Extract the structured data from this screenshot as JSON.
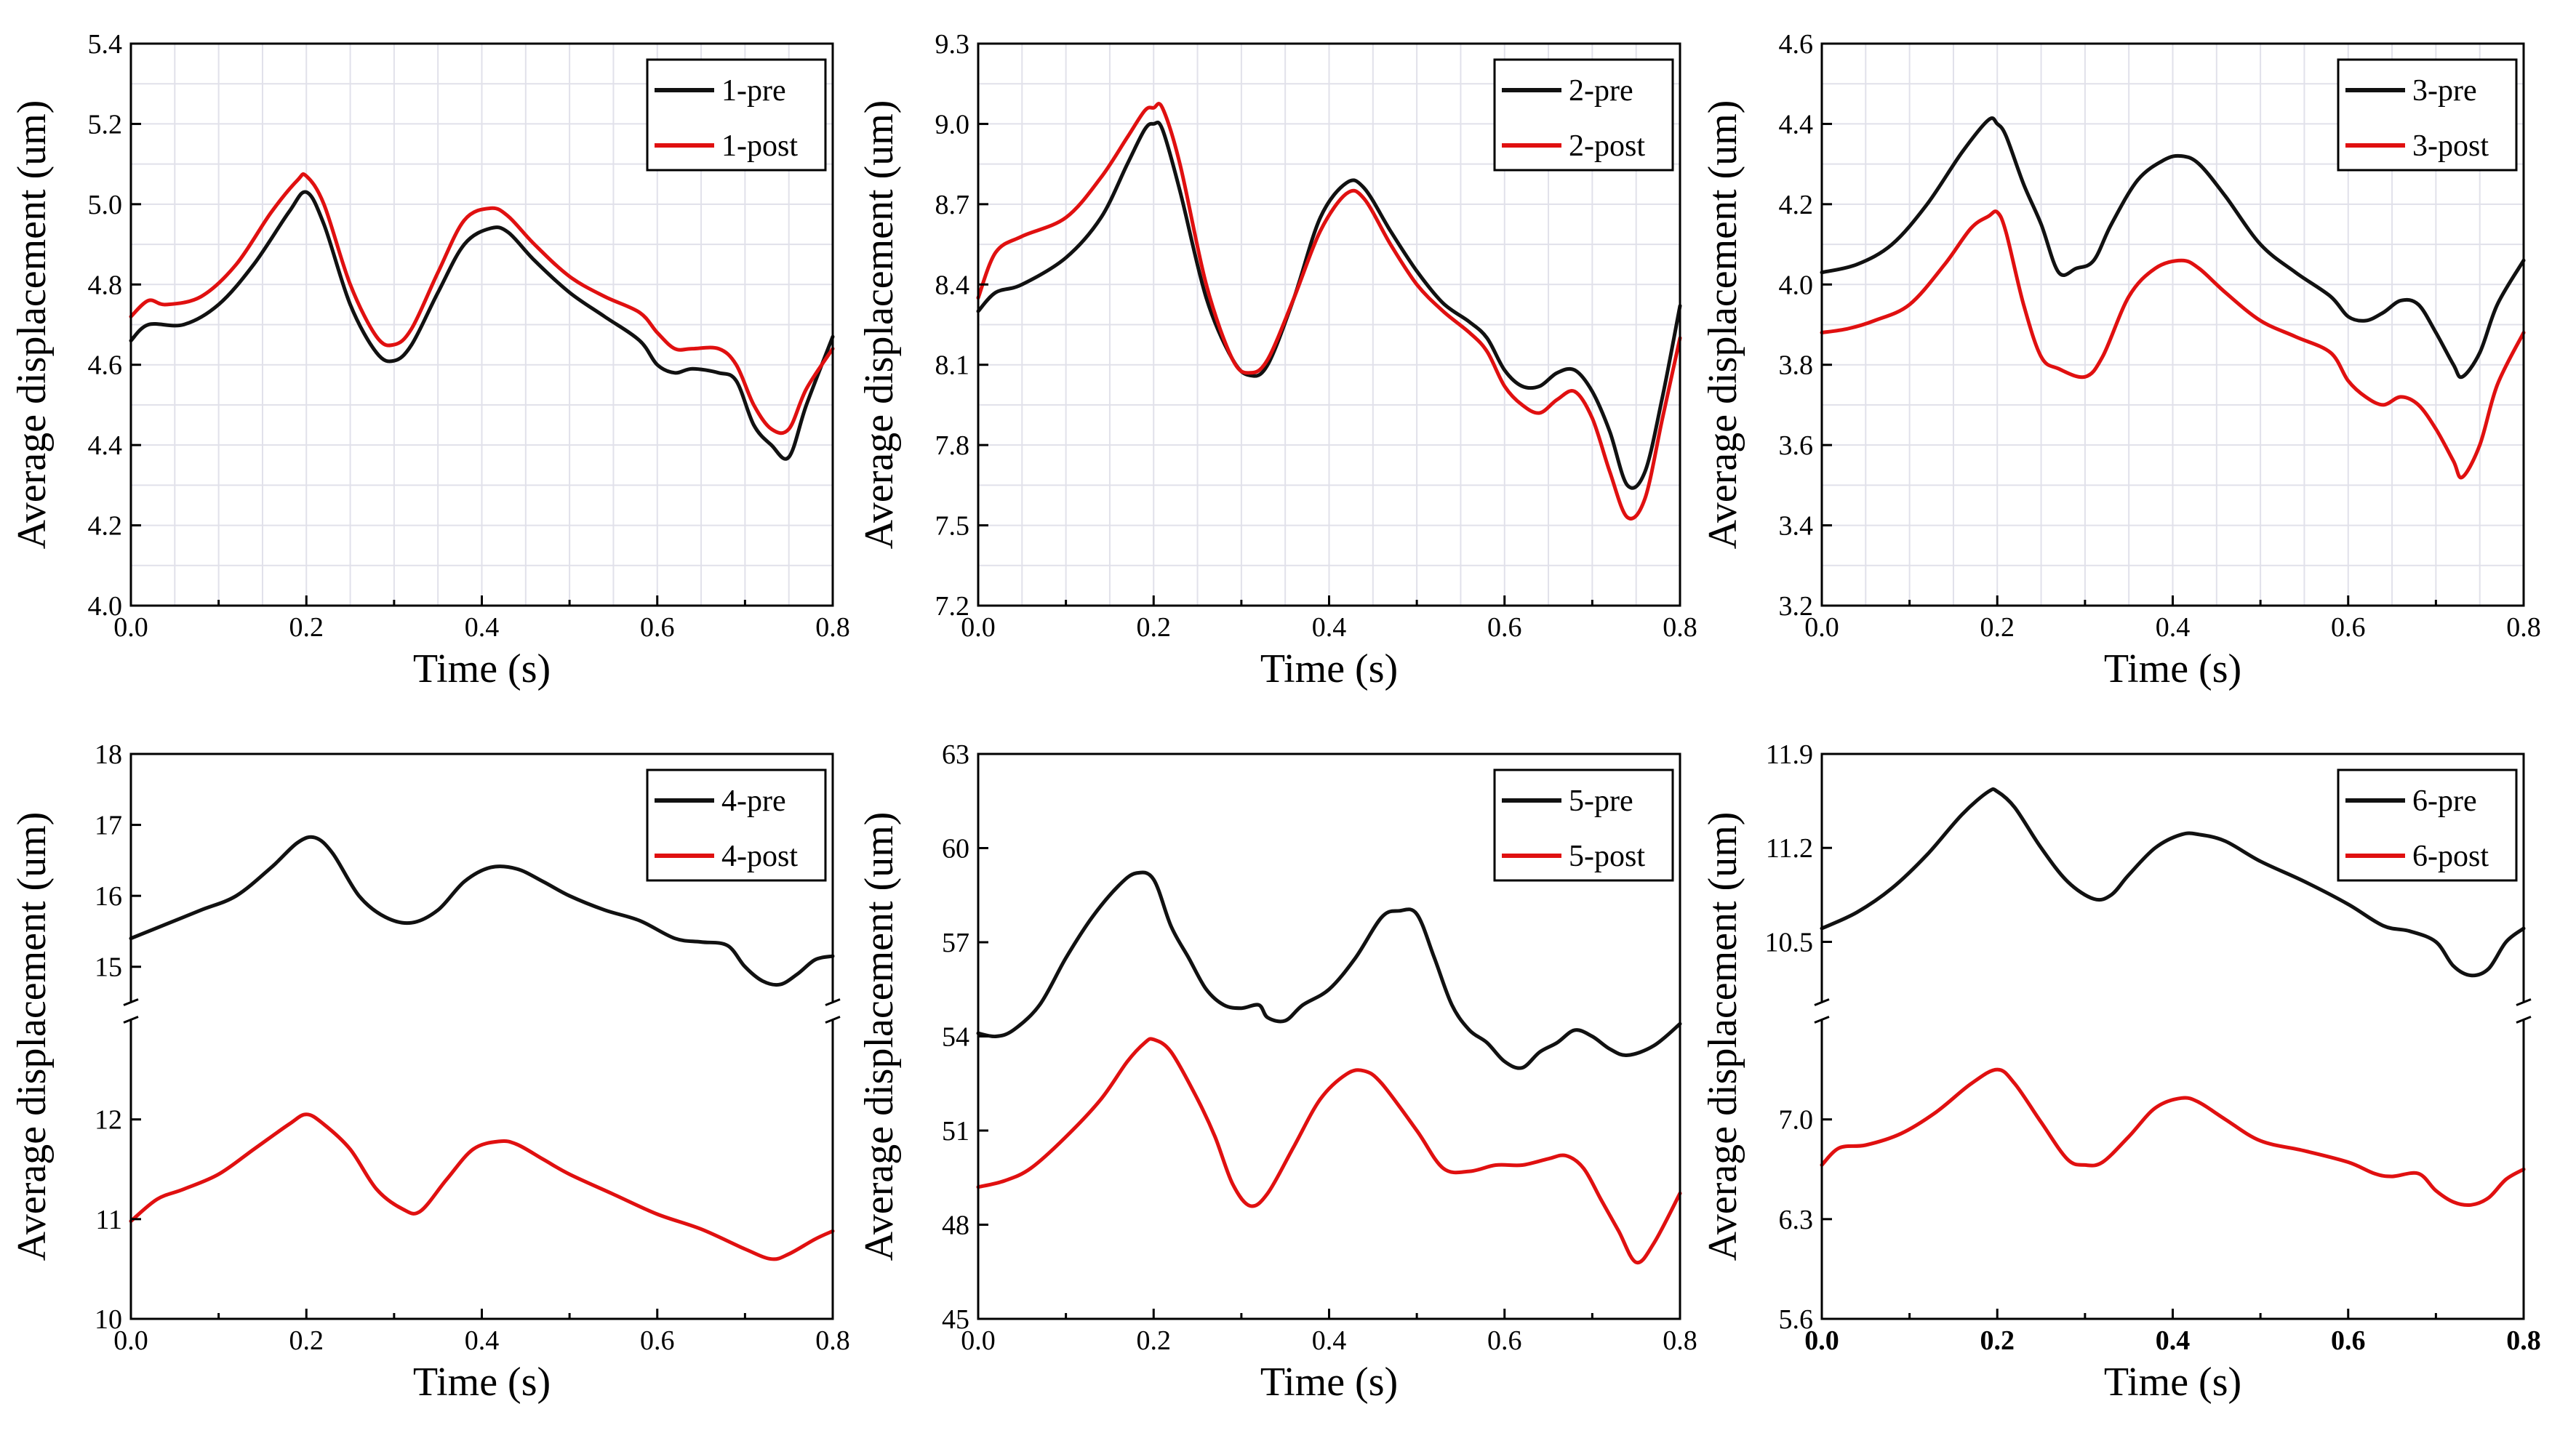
{
  "figure": {
    "background": "#ffffff",
    "grid_color": "#e1e1ea",
    "series_colors": {
      "pre": "#111111",
      "post": "#e01010"
    }
  },
  "chart_data": [
    {
      "id": "panel-1",
      "type": "line",
      "broken_axis": false,
      "xlabel": "Time (s)",
      "ylabel": "Average displacement (um)",
      "xlim": [
        0,
        0.8
      ],
      "ylim": [
        4.0,
        5.4
      ],
      "xticks": [
        "0.0",
        "0.2",
        "0.4",
        "0.6",
        "0.8"
      ],
      "yticks": [
        "4.0",
        "4.2",
        "4.4",
        "4.6",
        "4.8",
        "5.0",
        "5.2",
        "5.4"
      ],
      "grid": true,
      "legend": "top-right",
      "series": [
        {
          "name": "1-pre",
          "role": "pre",
          "x": [
            0,
            0.02,
            0.06,
            0.1,
            0.14,
            0.18,
            0.2,
            0.22,
            0.25,
            0.28,
            0.3,
            0.32,
            0.35,
            0.38,
            0.41,
            0.43,
            0.46,
            0.5,
            0.54,
            0.58,
            0.6,
            0.62,
            0.64,
            0.67,
            0.69,
            0.71,
            0.73,
            0.75,
            0.77,
            0.8
          ],
          "y": [
            4.66,
            4.7,
            4.7,
            4.75,
            4.85,
            4.98,
            5.03,
            4.95,
            4.75,
            4.63,
            4.61,
            4.65,
            4.78,
            4.9,
            4.94,
            4.93,
            4.86,
            4.78,
            4.72,
            4.66,
            4.6,
            4.58,
            4.59,
            4.58,
            4.56,
            4.45,
            4.4,
            4.37,
            4.5,
            4.67
          ]
        },
        {
          "name": "1-post",
          "role": "post",
          "x": [
            0,
            0.02,
            0.04,
            0.08,
            0.12,
            0.16,
            0.19,
            0.2,
            0.22,
            0.25,
            0.28,
            0.3,
            0.32,
            0.35,
            0.38,
            0.41,
            0.43,
            0.46,
            0.5,
            0.54,
            0.58,
            0.6,
            0.62,
            0.64,
            0.67,
            0.69,
            0.71,
            0.73,
            0.75,
            0.77,
            0.8
          ],
          "y": [
            4.72,
            4.76,
            4.75,
            4.77,
            4.85,
            4.98,
            5.06,
            5.07,
            5.0,
            4.8,
            4.67,
            4.65,
            4.69,
            4.83,
            4.96,
            4.99,
            4.97,
            4.9,
            4.82,
            4.77,
            4.73,
            4.68,
            4.64,
            4.64,
            4.64,
            4.6,
            4.5,
            4.44,
            4.44,
            4.54,
            4.64
          ]
        }
      ]
    },
    {
      "id": "panel-2",
      "type": "line",
      "broken_axis": false,
      "xlabel": "Time (s)",
      "ylabel": "Average displacement (um)",
      "xlim": [
        0,
        0.8
      ],
      "ylim": [
        7.2,
        9.3
      ],
      "xticks": [
        "0.0",
        "0.2",
        "0.4",
        "0.6",
        "0.8"
      ],
      "yticks": [
        "7.2",
        "7.5",
        "7.8",
        "8.1",
        "8.4",
        "8.7",
        "9.0",
        "9.3"
      ],
      "grid": true,
      "legend": "top-right",
      "series": [
        {
          "name": "2-pre",
          "role": "pre",
          "x": [
            0,
            0.02,
            0.05,
            0.1,
            0.14,
            0.17,
            0.19,
            0.2,
            0.21,
            0.23,
            0.26,
            0.29,
            0.31,
            0.33,
            0.36,
            0.39,
            0.42,
            0.44,
            0.47,
            0.5,
            0.53,
            0.56,
            0.58,
            0.6,
            0.62,
            0.64,
            0.66,
            0.68,
            0.7,
            0.72,
            0.74,
            0.76,
            0.78,
            0.8
          ],
          "y": [
            8.3,
            8.37,
            8.4,
            8.5,
            8.65,
            8.85,
            8.98,
            9.0,
            8.98,
            8.75,
            8.35,
            8.12,
            8.06,
            8.1,
            8.35,
            8.65,
            8.78,
            8.76,
            8.6,
            8.45,
            8.33,
            8.26,
            8.2,
            8.08,
            8.02,
            8.02,
            8.07,
            8.08,
            8.0,
            7.85,
            7.65,
            7.7,
            7.98,
            8.32
          ]
        },
        {
          "name": "2-post",
          "role": "post",
          "x": [
            0,
            0.02,
            0.05,
            0.1,
            0.14,
            0.17,
            0.19,
            0.2,
            0.21,
            0.23,
            0.26,
            0.29,
            0.31,
            0.33,
            0.36,
            0.39,
            0.42,
            0.44,
            0.47,
            0.5,
            0.53,
            0.56,
            0.58,
            0.6,
            0.62,
            0.64,
            0.66,
            0.68,
            0.7,
            0.72,
            0.74,
            0.76,
            0.78,
            0.8
          ],
          "y": [
            8.35,
            8.52,
            8.58,
            8.65,
            8.8,
            8.95,
            9.05,
            9.06,
            9.06,
            8.85,
            8.4,
            8.12,
            8.07,
            8.12,
            8.35,
            8.6,
            8.74,
            8.72,
            8.55,
            8.4,
            8.3,
            8.22,
            8.15,
            8.02,
            7.95,
            7.92,
            7.97,
            8.0,
            7.9,
            7.7,
            7.53,
            7.6,
            7.9,
            8.2
          ]
        }
      ]
    },
    {
      "id": "panel-3",
      "type": "line",
      "broken_axis": false,
      "xlabel": "Time (s)",
      "ylabel": "Average displacement (um)",
      "xlim": [
        0,
        0.8
      ],
      "ylim": [
        3.2,
        4.6
      ],
      "xticks": [
        "0.0",
        "0.2",
        "0.4",
        "0.6",
        "0.8"
      ],
      "yticks": [
        "3.2",
        "3.4",
        "3.6",
        "3.8",
        "4.0",
        "4.2",
        "4.4",
        "4.6"
      ],
      "grid": true,
      "legend": "top-right",
      "series": [
        {
          "name": "3-pre",
          "role": "pre",
          "x": [
            0,
            0.04,
            0.08,
            0.12,
            0.16,
            0.19,
            0.2,
            0.21,
            0.23,
            0.25,
            0.27,
            0.29,
            0.31,
            0.33,
            0.36,
            0.39,
            0.41,
            0.43,
            0.46,
            0.5,
            0.54,
            0.58,
            0.6,
            0.62,
            0.64,
            0.66,
            0.68,
            0.7,
            0.72,
            0.73,
            0.75,
            0.77,
            0.8
          ],
          "y": [
            4.03,
            4.05,
            4.1,
            4.2,
            4.33,
            4.41,
            4.4,
            4.37,
            4.25,
            4.15,
            4.03,
            4.04,
            4.06,
            4.15,
            4.26,
            4.31,
            4.32,
            4.3,
            4.22,
            4.1,
            4.03,
            3.97,
            3.92,
            3.91,
            3.93,
            3.96,
            3.95,
            3.88,
            3.8,
            3.77,
            3.83,
            3.95,
            4.06
          ]
        },
        {
          "name": "3-post",
          "role": "post",
          "x": [
            0,
            0.03,
            0.06,
            0.1,
            0.14,
            0.17,
            0.19,
            0.2,
            0.21,
            0.23,
            0.25,
            0.27,
            0.3,
            0.32,
            0.35,
            0.38,
            0.41,
            0.43,
            0.46,
            0.5,
            0.54,
            0.58,
            0.6,
            0.62,
            0.64,
            0.66,
            0.68,
            0.7,
            0.72,
            0.73,
            0.75,
            0.77,
            0.8
          ],
          "y": [
            3.88,
            3.89,
            3.91,
            3.95,
            4.05,
            4.14,
            4.17,
            4.18,
            4.13,
            3.95,
            3.82,
            3.79,
            3.77,
            3.82,
            3.97,
            4.04,
            4.06,
            4.04,
            3.98,
            3.91,
            3.87,
            3.83,
            3.76,
            3.72,
            3.7,
            3.72,
            3.7,
            3.64,
            3.56,
            3.52,
            3.6,
            3.75,
            3.88
          ]
        }
      ]
    },
    {
      "id": "panel-4",
      "type": "line",
      "broken_axis": true,
      "xlabel": "Time (s)",
      "ylabel": "Average displacement (um)",
      "xlim": [
        0,
        0.8
      ],
      "xticks": [
        "0.0",
        "0.2",
        "0.4",
        "0.6",
        "0.8"
      ],
      "upper": {
        "ylim": [
          14.5,
          18
        ],
        "yticks": [
          "15",
          "16",
          "17",
          "18"
        ]
      },
      "lower": {
        "ylim": [
          10,
          13
        ],
        "yticks": [
          "10",
          "11",
          "12"
        ]
      },
      "grid": false,
      "legend": "top-right",
      "series": [
        {
          "name": "4-pre",
          "role": "pre",
          "x": [
            0,
            0.04,
            0.08,
            0.12,
            0.16,
            0.19,
            0.21,
            0.23,
            0.26,
            0.29,
            0.32,
            0.35,
            0.38,
            0.41,
            0.44,
            0.47,
            0.5,
            0.54,
            0.58,
            0.62,
            0.65,
            0.68,
            0.7,
            0.72,
            0.74,
            0.76,
            0.78,
            0.8
          ],
          "y": [
            15.4,
            15.6,
            15.8,
            16.0,
            16.4,
            16.75,
            16.82,
            16.6,
            16.0,
            15.7,
            15.62,
            15.8,
            16.2,
            16.4,
            16.38,
            16.2,
            16.0,
            15.8,
            15.65,
            15.4,
            15.35,
            15.3,
            15.0,
            14.8,
            14.75,
            14.9,
            15.1,
            15.15
          ]
        },
        {
          "name": "4-post",
          "role": "post",
          "x": [
            0,
            0.03,
            0.06,
            0.1,
            0.14,
            0.18,
            0.2,
            0.22,
            0.25,
            0.28,
            0.31,
            0.33,
            0.36,
            0.39,
            0.42,
            0.44,
            0.47,
            0.5,
            0.55,
            0.6,
            0.65,
            0.7,
            0.73,
            0.75,
            0.78,
            0.8
          ],
          "y": [
            10.98,
            11.2,
            11.3,
            11.45,
            11.7,
            11.95,
            12.05,
            11.95,
            11.7,
            11.3,
            11.1,
            11.08,
            11.4,
            11.7,
            11.78,
            11.75,
            11.6,
            11.45,
            11.25,
            11.05,
            10.9,
            10.7,
            10.6,
            10.65,
            10.8,
            10.88
          ]
        }
      ]
    },
    {
      "id": "panel-5",
      "type": "line",
      "broken_axis": false,
      "xlabel": "Time (s)",
      "ylabel": "Average displacement (um)",
      "xlim": [
        0,
        0.8
      ],
      "ylim": [
        45,
        63
      ],
      "xticks": [
        "0.0",
        "0.2",
        "0.4",
        "0.6",
        "0.8"
      ],
      "yticks": [
        "45",
        "48",
        "51",
        "54",
        "57",
        "60",
        "63"
      ],
      "grid": false,
      "legend": "top-right",
      "series": [
        {
          "name": "5-pre",
          "role": "pre",
          "x": [
            0,
            0.02,
            0.04,
            0.07,
            0.1,
            0.13,
            0.16,
            0.18,
            0.2,
            0.22,
            0.24,
            0.26,
            0.28,
            0.3,
            0.32,
            0.33,
            0.35,
            0.37,
            0.4,
            0.43,
            0.46,
            0.48,
            0.5,
            0.52,
            0.54,
            0.56,
            0.58,
            0.6,
            0.62,
            0.64,
            0.66,
            0.68,
            0.7,
            0.72,
            0.74,
            0.77,
            0.8
          ],
          "y": [
            54.1,
            54.0,
            54.2,
            55.0,
            56.5,
            57.8,
            58.8,
            59.2,
            59.0,
            57.5,
            56.5,
            55.5,
            55.0,
            54.9,
            55.0,
            54.6,
            54.5,
            55.0,
            55.5,
            56.5,
            57.8,
            58.0,
            57.9,
            56.5,
            55.0,
            54.2,
            53.8,
            53.2,
            53.0,
            53.5,
            53.8,
            54.2,
            54.0,
            53.6,
            53.4,
            53.7,
            54.4
          ]
        },
        {
          "name": "5-post",
          "role": "post",
          "x": [
            0,
            0.03,
            0.06,
            0.1,
            0.14,
            0.17,
            0.19,
            0.2,
            0.22,
            0.25,
            0.27,
            0.29,
            0.31,
            0.33,
            0.36,
            0.39,
            0.42,
            0.44,
            0.46,
            0.5,
            0.53,
            0.56,
            0.59,
            0.62,
            0.65,
            0.67,
            0.69,
            0.71,
            0.73,
            0.75,
            0.77,
            0.8
          ],
          "y": [
            49.2,
            49.4,
            49.8,
            50.8,
            52.0,
            53.2,
            53.8,
            53.9,
            53.5,
            52.0,
            50.8,
            49.3,
            48.6,
            49.0,
            50.5,
            52.0,
            52.8,
            52.9,
            52.5,
            51.0,
            49.8,
            49.7,
            49.9,
            49.9,
            50.1,
            50.2,
            49.8,
            48.8,
            47.8,
            46.8,
            47.4,
            49.0
          ]
        }
      ]
    },
    {
      "id": "panel-6",
      "type": "line",
      "broken_axis": true,
      "xlabel": "Time (s)",
      "ylabel": "Average displacement (um)",
      "xlim": [
        0,
        0.8
      ],
      "xticks": [
        "0.0",
        "0.2",
        "0.4",
        "0.6",
        "0.8"
      ],
      "upper": {
        "ylim": [
          10.05,
          11.9
        ],
        "yticks": [
          "10.5",
          "11.2",
          "11.9"
        ]
      },
      "lower": {
        "ylim": [
          5.6,
          7.7
        ],
        "yticks": [
          "5.6",
          "6.3",
          "7.0"
        ]
      },
      "grid": false,
      "legend": "top-right",
      "series": [
        {
          "name": "6-pre",
          "role": "pre",
          "x": [
            0,
            0.04,
            0.08,
            0.12,
            0.16,
            0.19,
            0.2,
            0.22,
            0.25,
            0.28,
            0.31,
            0.33,
            0.35,
            0.38,
            0.41,
            0.43,
            0.46,
            0.5,
            0.55,
            0.6,
            0.64,
            0.67,
            0.7,
            0.72,
            0.74,
            0.76,
            0.78,
            0.8
          ],
          "y": [
            10.6,
            10.72,
            10.9,
            11.15,
            11.45,
            11.62,
            11.62,
            11.5,
            11.2,
            10.95,
            10.82,
            10.85,
            11.0,
            11.2,
            11.3,
            11.3,
            11.25,
            11.1,
            10.95,
            10.78,
            10.62,
            10.58,
            10.5,
            10.32,
            10.25,
            10.3,
            10.5,
            10.6
          ]
        },
        {
          "name": "6-post",
          "role": "post",
          "x": [
            0,
            0.02,
            0.05,
            0.09,
            0.13,
            0.17,
            0.2,
            0.22,
            0.25,
            0.28,
            0.3,
            0.32,
            0.35,
            0.38,
            0.41,
            0.43,
            0.46,
            0.5,
            0.55,
            0.6,
            0.63,
            0.65,
            0.68,
            0.7,
            0.72,
            0.74,
            0.76,
            0.78,
            0.8
          ],
          "y": [
            6.68,
            6.8,
            6.82,
            6.9,
            7.05,
            7.25,
            7.35,
            7.25,
            6.98,
            6.72,
            6.68,
            6.7,
            6.88,
            7.08,
            7.15,
            7.12,
            7.0,
            6.85,
            6.78,
            6.7,
            6.62,
            6.6,
            6.62,
            6.5,
            6.42,
            6.4,
            6.45,
            6.58,
            6.65
          ]
        }
      ]
    }
  ]
}
